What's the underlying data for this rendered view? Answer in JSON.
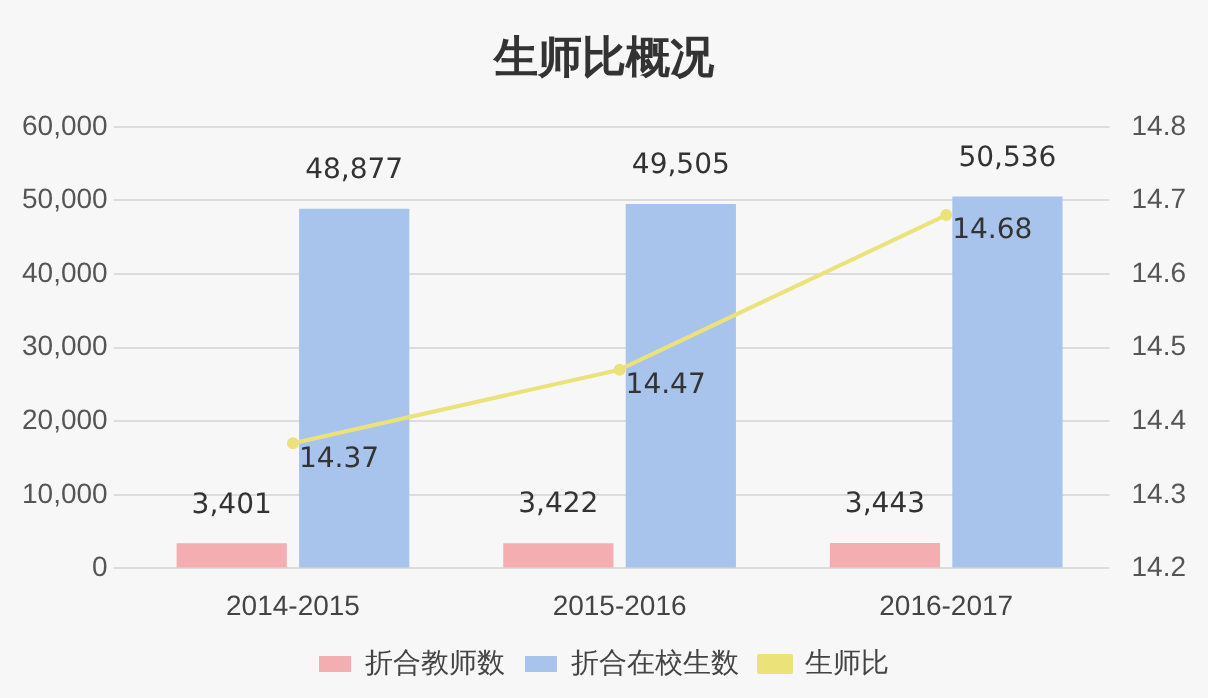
{
  "chart_data": {
    "type": "bar",
    "title": "生师比概况",
    "categories": [
      "2014-2015",
      "2015-2016",
      "2016-2017"
    ],
    "series": [
      {
        "name": "折合教师数",
        "color": "#f4aeb2",
        "values": [
          3401,
          3422,
          3443
        ],
        "value_labels": [
          "3,401",
          "3,422",
          "3,443"
        ]
      },
      {
        "name": "折合在校生数",
        "color": "#a8c3ec",
        "values": [
          48877,
          49505,
          50536
        ],
        "value_labels": [
          "48,877",
          "49,505",
          "50,536"
        ]
      },
      {
        "name": "生师比",
        "type": "line",
        "axis": "y2",
        "color": "#ebe27a",
        "values": [
          14.37,
          14.47,
          14.68
        ],
        "value_labels": [
          "14.37",
          "14.47",
          "14.68"
        ]
      }
    ],
    "ylim": [
      0,
      60000
    ],
    "yticks": [
      0,
      {
        "value": 10000,
        "label": "10,000"
      },
      {
        "value": 20000,
        "label": "20,000"
      },
      {
        "value": 30000,
        "label": "30,000"
      },
      {
        "value": 40000,
        "label": "40,000"
      },
      {
        "value": 50000,
        "label": "50,000"
      },
      {
        "value": 60000,
        "label": "60,000"
      }
    ],
    "y2lim": [
      14.2,
      14.8
    ],
    "y2ticks": [
      14.2,
      14.3,
      14.4,
      14.5,
      14.6,
      14.7,
      14.8
    ],
    "grid": "y",
    "legend": "bottom",
    "marker": "circle"
  }
}
